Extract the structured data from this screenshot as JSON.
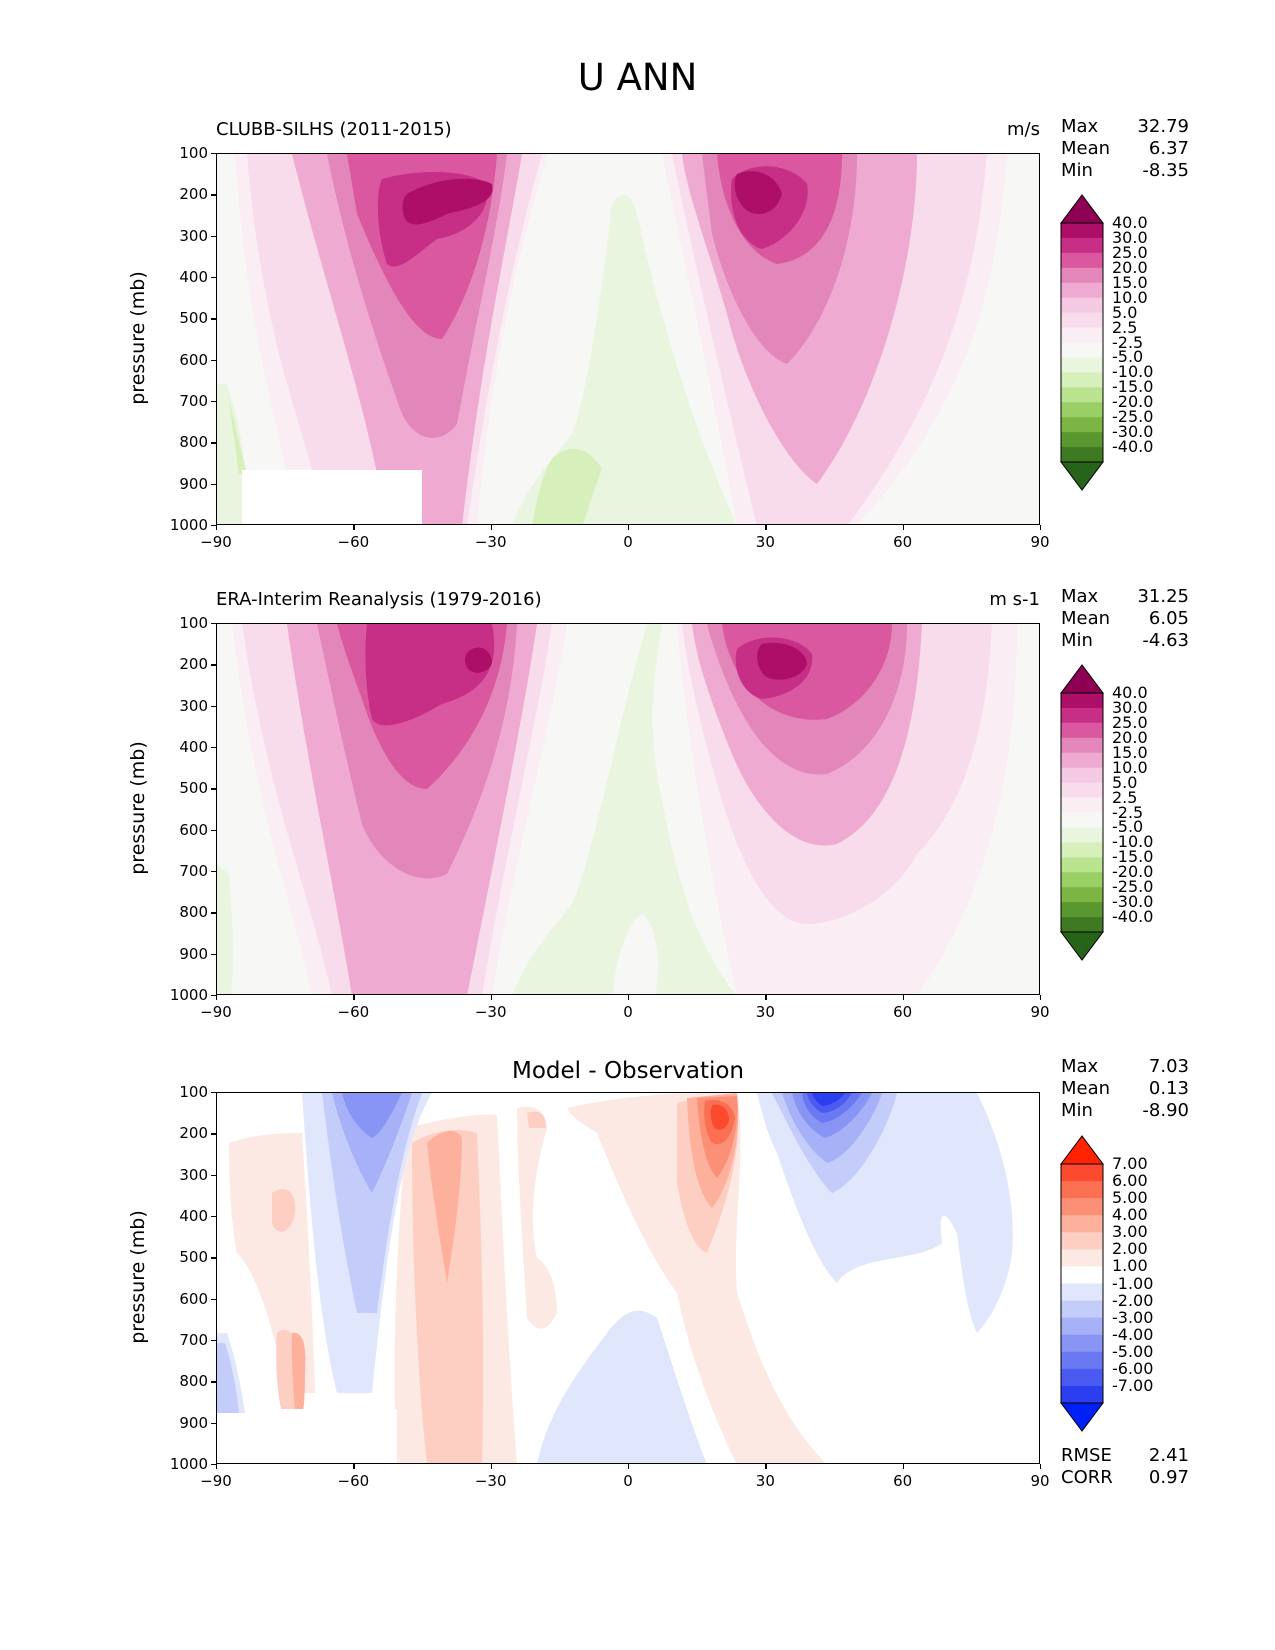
{
  "figure": {
    "title": "U ANN"
  },
  "panels": [
    {
      "title": "CLUBB-SILHS (2011-2015)",
      "units": "m/s",
      "stats": [
        {
          "label": "Max",
          "value": "32.79"
        },
        {
          "label": "Mean",
          "value": "6.37"
        },
        {
          "label": "Min",
          "value": "-8.35"
        }
      ]
    },
    {
      "title": "ERA-Interim Reanalysis (1979-2016)",
      "units": "m s-1",
      "stats": [
        {
          "label": "Max",
          "value": "31.25"
        },
        {
          "label": "Mean",
          "value": "6.05"
        },
        {
          "label": "Min",
          "value": "-4.63"
        }
      ]
    },
    {
      "title": "Model - Observation",
      "units": "",
      "stats": [
        {
          "label": "Max",
          "value": "7.03"
        },
        {
          "label": "Mean",
          "value": "0.13"
        },
        {
          "label": "Min",
          "value": "-8.90"
        }
      ],
      "extra_stats": [
        {
          "label": "RMSE",
          "value": "2.41"
        },
        {
          "label": "CORR",
          "value": "0.97"
        }
      ]
    }
  ],
  "chart_data": [
    {
      "type": "heatmap",
      "title": "CLUBB-SILHS (2011-2015)",
      "units": "m/s",
      "ylabel": "pressure (mb)",
      "xlabel": "",
      "xlim": [
        -90,
        90
      ],
      "ylim": [
        1000,
        100
      ],
      "xticks": [
        "−90",
        "−60",
        "−30",
        "0",
        "30",
        "60",
        "90"
      ],
      "yticks": [
        "100",
        "200",
        "300",
        "400",
        "500",
        "600",
        "700",
        "800",
        "900",
        "1000"
      ],
      "levels": [
        "40.0",
        "30.0",
        "25.0",
        "20.0",
        "15.0",
        "10.0",
        "5.0",
        "2.5",
        "-2.5",
        "-5.0",
        "-10.0",
        "-15.0",
        "-20.0",
        "-25.0",
        "-30.0",
        "-40.0"
      ],
      "colors": [
        "#8e0152",
        "#ad0f68",
        "#c72e86",
        "#d9589f",
        "#e386b9",
        "#efaad2",
        "#f5c9e3",
        "#f8dcec",
        "#faeef4",
        "#f7f7f6",
        "#eaf5df",
        "#d6efbb",
        "#bae390",
        "#9acf66",
        "#7db544",
        "#5a982f",
        "#3f7a22",
        "#276419"
      ],
      "max": 32.79,
      "mean": 6.37,
      "min": -8.35,
      "features": [
        {
          "kind": "westerly_jet",
          "lat": -40,
          "pressure": 200,
          "peak": 32.79
        },
        {
          "kind": "westerly_jet",
          "lat": 30,
          "pressure": 200,
          "peak": 30
        },
        {
          "kind": "easterlies",
          "lat": -10,
          "pressure": 900,
          "value": -8.35
        }
      ]
    },
    {
      "type": "heatmap",
      "title": "ERA-Interim Reanalysis (1979-2016)",
      "units": "m s-1",
      "ylabel": "pressure (mb)",
      "xlabel": "",
      "xlim": [
        -90,
        90
      ],
      "ylim": [
        1000,
        100
      ],
      "xticks": [
        "−90",
        "−60",
        "−30",
        "0",
        "30",
        "60",
        "90"
      ],
      "yticks": [
        "100",
        "200",
        "300",
        "400",
        "500",
        "600",
        "700",
        "800",
        "900",
        "1000"
      ],
      "levels": [
        "40.0",
        "30.0",
        "25.0",
        "20.0",
        "15.0",
        "10.0",
        "5.0",
        "2.5",
        "-2.5",
        "-5.0",
        "-10.0",
        "-15.0",
        "-20.0",
        "-25.0",
        "-30.0",
        "-40.0"
      ],
      "colors": [
        "#8e0152",
        "#ad0f68",
        "#c72e86",
        "#d9589f",
        "#e386b9",
        "#efaad2",
        "#f5c9e3",
        "#f8dcec",
        "#faeef4",
        "#f7f7f6",
        "#eaf5df",
        "#d6efbb",
        "#bae390",
        "#9acf66",
        "#7db544",
        "#5a982f",
        "#3f7a22",
        "#276419"
      ],
      "max": 31.25,
      "mean": 6.05,
      "min": -4.63,
      "features": [
        {
          "kind": "westerly_jet",
          "lat": -35,
          "pressure": 200,
          "peak": 31.25
        },
        {
          "kind": "westerly_jet",
          "lat": 30,
          "pressure": 200,
          "peak": 30
        },
        {
          "kind": "easterlies",
          "lat": 0,
          "pressure": 500,
          "value": -4.63
        }
      ]
    },
    {
      "type": "heatmap",
      "title": "Model - Observation",
      "ylabel": "pressure (mb)",
      "xlabel": "",
      "xlim": [
        -90,
        90
      ],
      "ylim": [
        1000,
        100
      ],
      "xticks": [
        "−90",
        "−60",
        "−30",
        "0",
        "30",
        "60",
        "90"
      ],
      "yticks": [
        "100",
        "200",
        "300",
        "400",
        "500",
        "600",
        "700",
        "800",
        "900",
        "1000"
      ],
      "levels": [
        "7.00",
        "6.00",
        "5.00",
        "4.00",
        "3.00",
        "2.00",
        "1.00",
        "-1.00",
        "-2.00",
        "-3.00",
        "-4.00",
        "-5.00",
        "-6.00",
        "-7.00"
      ],
      "colors": [
        "#ff2300",
        "#fb4a2e",
        "#fb6f53",
        "#fc9077",
        "#fdb19d",
        "#fdcfc3",
        "#fde9e4",
        "#ffffff",
        "#e0e6fc",
        "#c4ccfa",
        "#a6b1f8",
        "#8895f5",
        "#6a78f2",
        "#4b5bf1",
        "#2b3ff1",
        "#0021f5"
      ],
      "max": 7.03,
      "mean": 0.13,
      "min": -8.9,
      "rmse": 2.41,
      "corr": 0.97,
      "features": [
        {
          "kind": "positive_bias",
          "lat": 20,
          "pressure": 150,
          "peak": 7.03
        },
        {
          "kind": "negative_bias",
          "lat": 40,
          "pressure": 100,
          "value": -8.9
        },
        {
          "kind": "positive_bias",
          "lat": -40,
          "pressure": 300,
          "value": 4
        },
        {
          "kind": "negative_bias",
          "lat": -60,
          "pressure": 300,
          "value": -3
        }
      ]
    }
  ]
}
